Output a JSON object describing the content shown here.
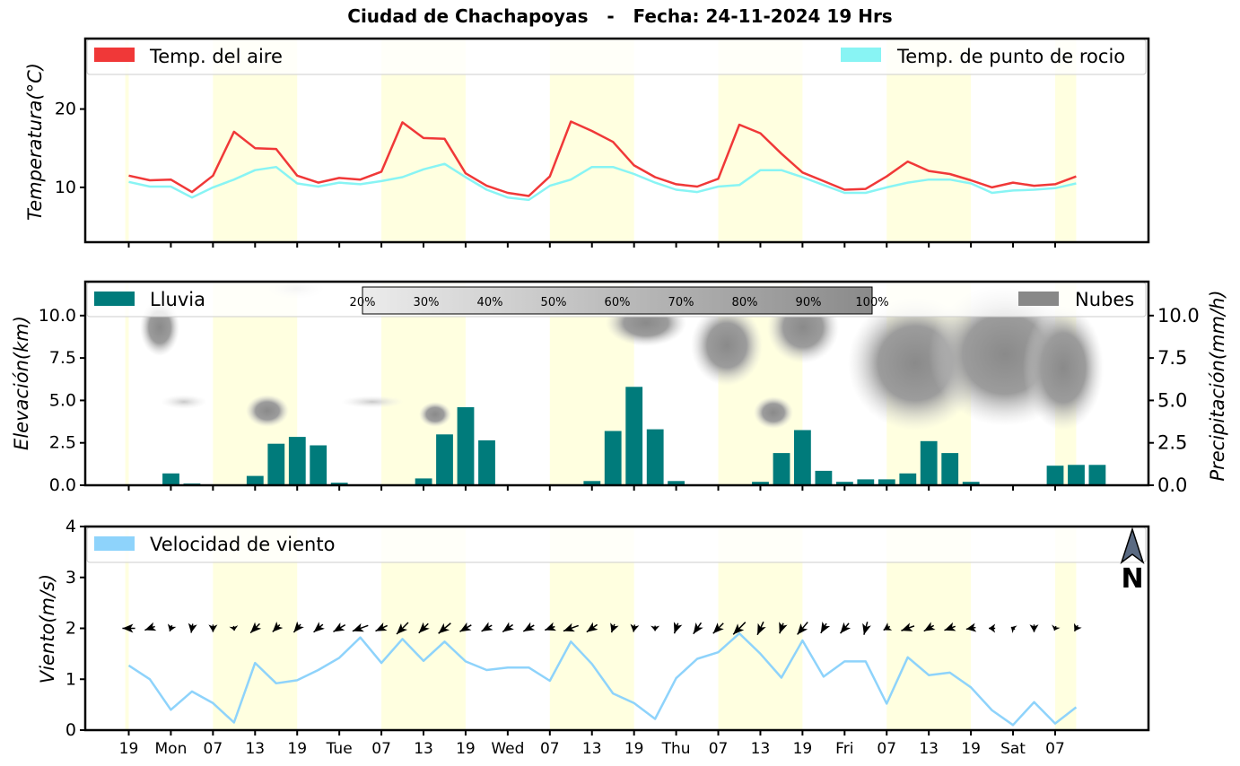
{
  "title": "Ciudad de Chachapoyas   -   Fecha: 24-11-2024 19 Hrs",
  "chart_data": [
    {
      "type": "line",
      "ylabel": "Temperatura(°C)",
      "ylim": [
        3,
        29
      ],
      "yticks": [
        10,
        20
      ],
      "x_hours": [
        0,
        3,
        6,
        9,
        12,
        15,
        18,
        21,
        24,
        27,
        30,
        33,
        36,
        39,
        42,
        45,
        48,
        51,
        54,
        57,
        60,
        63,
        66,
        69,
        72,
        75,
        78,
        81,
        84,
        87,
        90,
        93,
        96,
        99,
        102,
        105,
        108,
        111,
        114,
        117,
        120,
        123,
        126,
        129,
        132,
        135
      ],
      "series": [
        {
          "name": "Temp. del aire",
          "color": "#f03838",
          "values": [
            11.5,
            10.9,
            11.0,
            9.4,
            11.5,
            17.1,
            15.0,
            14.9,
            11.5,
            10.6,
            11.2,
            11.0,
            12.0,
            18.3,
            16.3,
            16.2,
            11.8,
            10.2,
            9.3,
            8.9,
            11.4,
            18.4,
            17.2,
            15.8,
            12.8,
            11.3,
            10.4,
            10.1,
            11.1,
            18.0,
            16.9,
            14.3,
            11.9,
            10.8,
            9.7,
            9.8,
            11.4,
            13.3,
            12.1,
            11.7,
            10.9,
            10.0,
            10.6,
            10.2,
            10.4,
            11.4
          ]
        },
        {
          "name": "Temp. de punto de rocio",
          "color": "#88f4f4",
          "values": [
            10.7,
            10.1,
            10.1,
            8.7,
            10.0,
            11.0,
            12.2,
            12.6,
            10.5,
            10.1,
            10.6,
            10.4,
            10.8,
            11.3,
            12.3,
            13.0,
            11.3,
            9.7,
            8.7,
            8.4,
            10.2,
            11.0,
            12.6,
            12.6,
            11.7,
            10.6,
            9.7,
            9.4,
            10.1,
            10.3,
            12.2,
            12.2,
            11.3,
            10.3,
            9.3,
            9.3,
            10.0,
            10.6,
            11.0,
            11.0,
            10.5,
            9.3,
            9.6,
            9.7,
            9.9,
            10.5
          ]
        }
      ],
      "legend": "top"
    },
    {
      "type": "bar",
      "ylabel": "Elevación(km)",
      "ylabel_right": "Precipitación(mm/h)",
      "ylim": [
        0,
        12
      ],
      "yticks": [
        0.0,
        2.5,
        5.0,
        7.5,
        10.0
      ],
      "yticklabels": [
        "0.0",
        "2.5",
        "5.0",
        "7.5",
        "10.0"
      ],
      "x_hours": [
        0,
        3,
        6,
        9,
        12,
        15,
        18,
        21,
        24,
        27,
        30,
        33,
        36,
        39,
        42,
        45,
        48,
        51,
        54,
        57,
        60,
        63,
        66,
        69,
        72,
        75,
        78,
        81,
        84,
        87,
        90,
        93,
        96,
        99,
        102,
        105,
        108,
        111,
        114,
        117,
        120,
        123,
        126,
        129,
        132,
        135
      ],
      "series": [
        {
          "name": "Lluvia",
          "color": "#007b7b",
          "values": [
            0,
            0.7,
            0.1,
            0,
            0,
            0.55,
            2.45,
            2.85,
            2.35,
            0.15,
            0.05,
            0.05,
            0.05,
            0.4,
            3.0,
            4.6,
            2.65,
            0.05,
            0,
            0,
            0,
            0.25,
            3.2,
            5.8,
            3.3,
            0.25,
            0,
            0,
            0,
            0.2,
            1.9,
            3.25,
            0.85,
            0.2,
            0.35,
            0.35,
            0.7,
            2.6,
            1.9,
            0.2,
            0.05,
            0.05,
            0,
            1.15,
            1.2,
            1.2
          ]
        },
        {
          "name": "Nubes",
          "color": "#888888"
        }
      ],
      "colorbar_labels": [
        "20%",
        "30%",
        "40%",
        "50%",
        "60%",
        "70%",
        "80%",
        "90%",
        "100%"
      ],
      "legend": "top"
    },
    {
      "type": "line",
      "ylabel": "Viento(m/s)",
      "ylim": [
        0,
        4
      ],
      "yticks": [
        0,
        1,
        2,
        3,
        4
      ],
      "x_hours": [
        0,
        3,
        6,
        9,
        12,
        15,
        18,
        21,
        24,
        27,
        30,
        33,
        36,
        39,
        42,
        45,
        48,
        51,
        54,
        57,
        60,
        63,
        66,
        69,
        72,
        75,
        78,
        81,
        84,
        87,
        90,
        93,
        96,
        99,
        102,
        105,
        108,
        111,
        114,
        117,
        120,
        123,
        126,
        129,
        132,
        135
      ],
      "series": [
        {
          "name": "Velocidad de viento",
          "color": "#8ed3fb",
          "values": [
            1.27,
            1.0,
            0.4,
            0.76,
            0.53,
            0.15,
            1.32,
            0.92,
            0.98,
            1.18,
            1.42,
            1.82,
            1.32,
            1.79,
            1.36,
            1.74,
            1.35,
            1.18,
            1.23,
            1.23,
            0.97,
            1.74,
            1.3,
            0.72,
            0.53,
            0.22,
            1.02,
            1.4,
            1.53,
            1.9,
            1.5,
            1.03,
            1.76,
            1.05,
            1.35,
            1.35,
            0.52,
            1.43,
            1.08,
            1.13,
            0.84,
            0.39,
            0.1,
            0.55,
            0.13,
            0.45
          ]
        }
      ],
      "wind_dir_deg": [
        270,
        250,
        200,
        190,
        180,
        170,
        225,
        225,
        220,
        230,
        240,
        250,
        245,
        225,
        225,
        230,
        240,
        240,
        235,
        240,
        250,
        250,
        235,
        200,
        190,
        180,
        200,
        215,
        225,
        225,
        205,
        200,
        220,
        210,
        220,
        195,
        240,
        250,
        240,
        250,
        260,
        270,
        300,
        180,
        200,
        210
      ],
      "compass": "N",
      "legend": "top"
    }
  ],
  "x_axis": {
    "tick_hours": [
      0,
      6,
      12,
      18,
      24,
      30,
      36,
      42,
      48,
      54,
      60,
      66,
      72,
      78,
      84,
      90,
      96,
      102,
      108,
      114,
      120,
      126,
      132
    ],
    "tick_labels": [
      "19",
      "Mon",
      "07",
      "13",
      "19",
      "Tue",
      "07",
      "13",
      "19",
      "Wed",
      "07",
      "13",
      "19",
      "Thu",
      "07",
      "13",
      "19",
      "Fri",
      "07",
      "13",
      "19",
      "Sat",
      "07"
    ],
    "day_shading": [
      [
        -0.5,
        0
      ],
      [
        12,
        24
      ],
      [
        36,
        48
      ],
      [
        60,
        72
      ],
      [
        84,
        96
      ],
      [
        108,
        120
      ],
      [
        132,
        135
      ]
    ],
    "shade_color": "#ffffe0"
  }
}
